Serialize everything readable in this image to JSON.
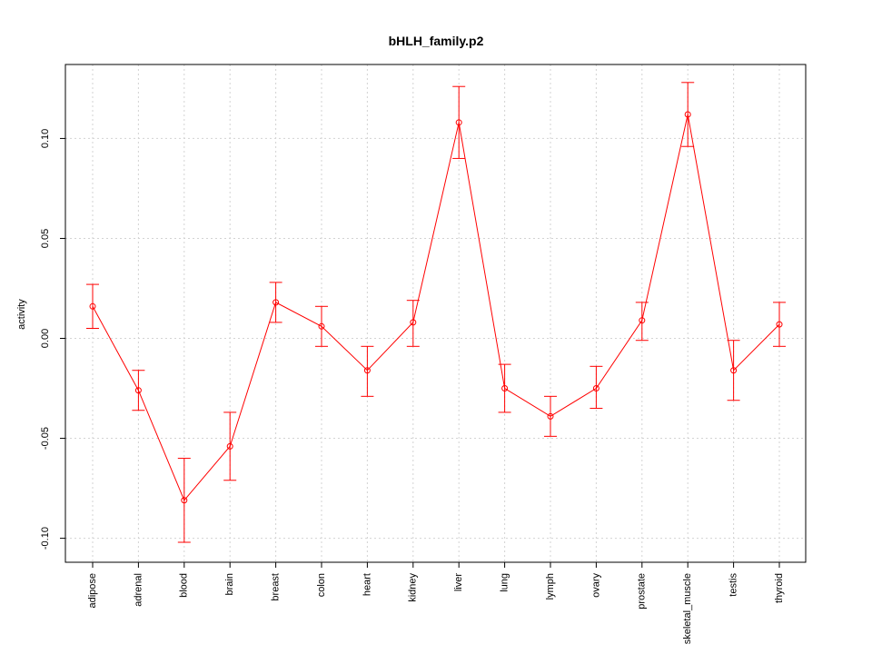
{
  "chart_data": {
    "type": "line",
    "title": "bHLH_family.p2",
    "xlabel": "",
    "ylabel": "activity",
    "categories": [
      "adipose",
      "adrenal",
      "blood",
      "brain",
      "breast",
      "colon",
      "heart",
      "kidney",
      "liver",
      "lung",
      "lymph",
      "ovary",
      "prostate",
      "skeletal_muscle",
      "testis",
      "thyroid"
    ],
    "series": [
      {
        "values": [
          0.016,
          -0.026,
          -0.081,
          -0.054,
          0.018,
          0.006,
          -0.016,
          0.008,
          0.108,
          -0.025,
          -0.039,
          -0.025,
          0.009,
          0.112,
          -0.016,
          0.007
        ],
        "lower": [
          0.005,
          -0.036,
          -0.102,
          -0.071,
          0.008,
          -0.004,
          -0.029,
          -0.004,
          0.09,
          -0.037,
          -0.049,
          -0.035,
          -0.001,
          0.096,
          -0.031,
          -0.004
        ],
        "upper": [
          0.027,
          -0.016,
          -0.06,
          -0.037,
          0.028,
          0.016,
          -0.004,
          0.019,
          0.126,
          -0.013,
          -0.029,
          -0.014,
          0.018,
          0.128,
          -0.001,
          0.018
        ]
      }
    ],
    "yticks": [
      -0.1,
      -0.05,
      0.0,
      0.05,
      0.1
    ],
    "ytick_labels": [
      "-0.10",
      "-0.05",
      "0.00",
      "0.05",
      "0.10"
    ],
    "ylim": [
      -0.112,
      0.137
    ],
    "grid": true,
    "colors": {
      "series": "#ff0000",
      "grid": "#d3d3d3",
      "frame": "#000000"
    }
  }
}
